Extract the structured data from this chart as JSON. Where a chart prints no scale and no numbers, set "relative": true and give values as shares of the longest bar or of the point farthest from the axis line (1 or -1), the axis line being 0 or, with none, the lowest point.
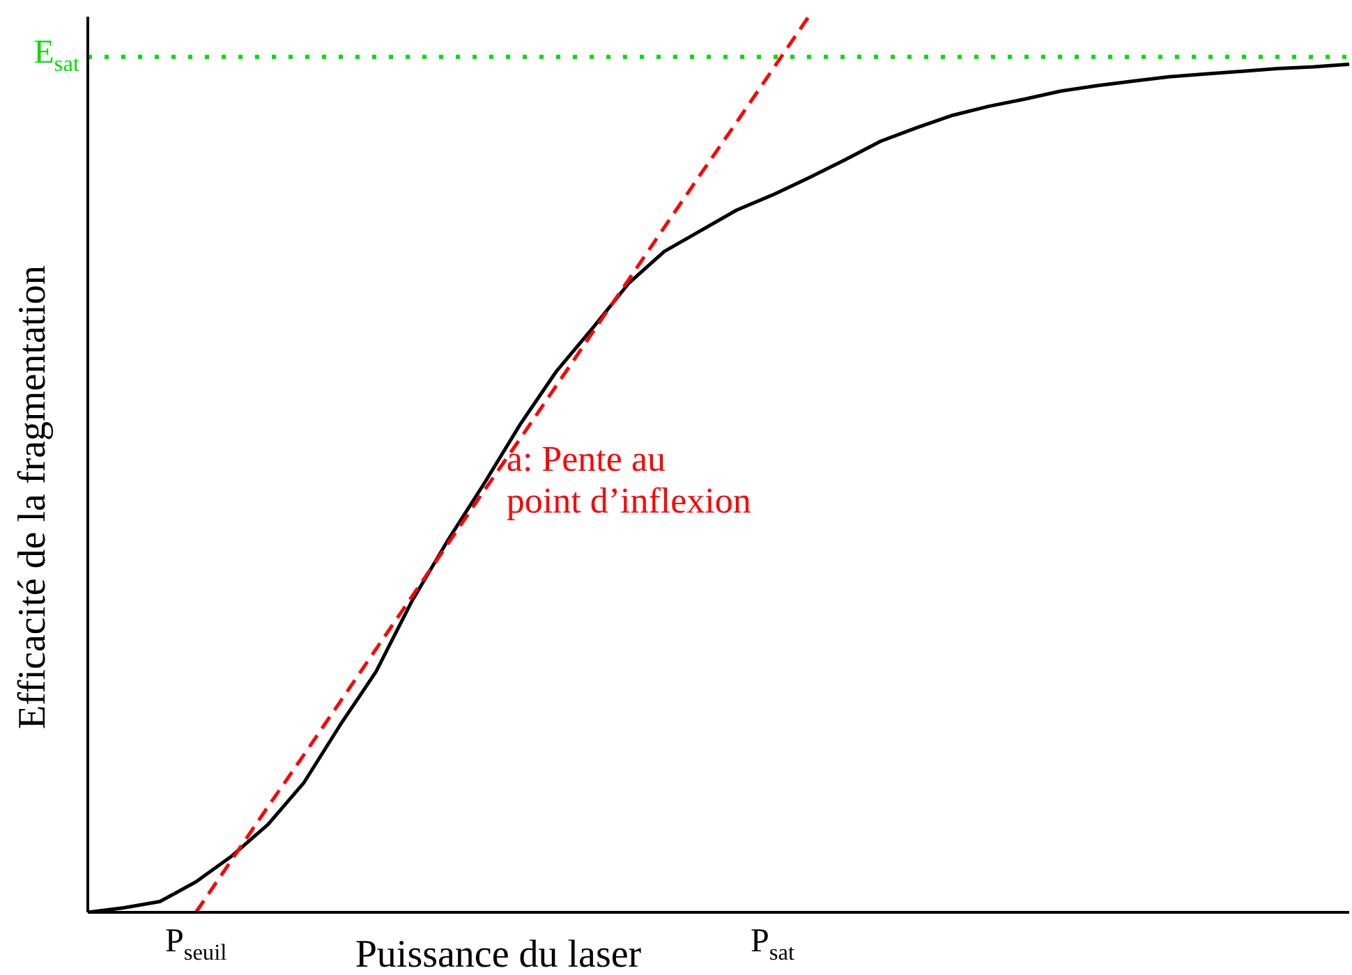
{
  "chart_data": {
    "type": "line",
    "relative": true,
    "xlabel": "Puissance du laser",
    "ylabel": "Efficacité de la fragmentation",
    "categories": [
      null,
      null,
      null,
      "P$_{seuil}$",
      null,
      null,
      null,
      null,
      null,
      null,
      null,
      null,
      null,
      null,
      null,
      null,
      null,
      null,
      null,
      "P$_{sat}$",
      null,
      null,
      null,
      null,
      null,
      null,
      null,
      null,
      null,
      null,
      null,
      null,
      null,
      null,
      null,
      null
    ],
    "series": [
      {
        "color": "#000000",
        "line_style": "solid",
        "values": [
          0,
          0.005,
          0.012,
          0.034,
          0.063,
          0.098,
          0.145,
          0.209,
          0.269,
          0.348,
          0.416,
          0.479,
          0.545,
          0.604,
          0.652,
          0.702,
          0.738,
          0.761,
          0.784,
          0.801,
          0.82,
          0.84,
          0.861,
          0.876,
          0.89,
          0.9,
          0.908,
          0.917,
          0.923,
          0.928,
          0.933,
          0.936,
          0.939,
          0.942,
          0.944,
          0.947
        ]
      },
      {
        "name": "a: Pente au\npoint d’inflexion",
        "color": "#ff0000",
        "line_style": "dashed",
        "values": [
          null,
          null,
          null,
          0,
          0.059,
          0.118,
          0.176,
          0.235,
          0.294,
          0.353,
          0.412,
          0.471,
          0.529,
          0.588,
          0.647,
          0.706,
          0.765,
          0.824,
          0.882,
          0.941,
          1.0,
          null,
          null,
          null,
          null,
          null,
          null,
          null,
          null,
          null,
          null,
          null,
          null,
          null,
          null,
          null
        ]
      }
    ],
    "ref_lines": [
      {
        "axis": "y",
        "value": 0.955,
        "label": "E$_{sat}$",
        "color": "#00dd00",
        "line_style": "dotted"
      }
    ],
    "marker": "none"
  }
}
